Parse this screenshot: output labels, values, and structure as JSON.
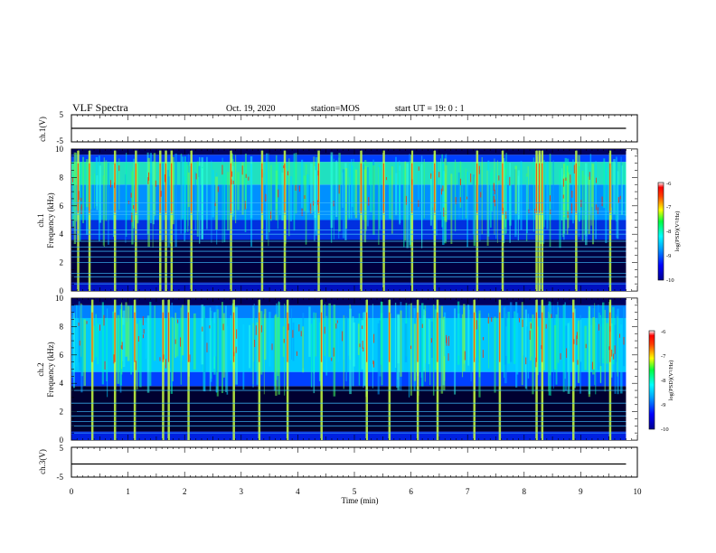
{
  "header": {
    "title": "VLF Spectra",
    "date": "Oct. 19, 2020",
    "station": "station=MOS",
    "start": "start  UT =   19: 0  : 1"
  },
  "chart_data": [
    {
      "type": "line",
      "ylabel": "ch.1(V)",
      "ylim": [
        -5,
        5
      ],
      "yticks": [
        {
          "v": 5,
          "label": "5"
        },
        {
          "v": -5,
          "label": "-5"
        }
      ],
      "series": [
        {
          "x": [
            0,
            9.8
          ],
          "values": [
            0,
            0
          ]
        }
      ]
    },
    {
      "type": "heatmap",
      "ylabel": "ch.1\nFrequency (kHz)",
      "ylim": [
        0,
        10
      ],
      "yticks": [
        "0",
        "2",
        "4",
        "6",
        "8",
        "10"
      ],
      "xlim": [
        0,
        10
      ],
      "data_end_min": 9.8,
      "colorbar": {
        "label": "log(PSD)(V²/Hz)",
        "ticks": [
          "-6",
          "-7",
          "-8",
          "-9",
          "-10"
        ],
        "range": [
          -10,
          -6
        ]
      },
      "lines_khz": [
        0.5,
        1.0,
        1.25,
        2.0,
        2.4,
        2.8,
        3.1,
        3.5,
        4.0,
        4.3,
        5.4,
        5.6,
        6.2
      ],
      "bursts_min": [
        0.1,
        0.3,
        0.75,
        1.12,
        1.55,
        1.65,
        1.75,
        2.1,
        2.8,
        3.35,
        3.75,
        4.35,
        5.1,
        5.5,
        6.0,
        6.4,
        7.15,
        7.6,
        8.2,
        8.25,
        8.3,
        8.9,
        9.5
      ]
    },
    {
      "type": "heatmap",
      "ylabel": "ch.2\nFrequency (kHz)",
      "ylim": [
        0,
        10
      ],
      "yticks": [
        "0",
        "2",
        "4",
        "6",
        "8",
        "10"
      ],
      "xlim": [
        0,
        10
      ],
      "data_end_min": 9.8,
      "colorbar": {
        "label": "log(PSD)(V²/Hz)",
        "ticks": [
          "-6",
          "-7",
          "-8",
          "-9",
          "-10"
        ],
        "range": [
          -10,
          -6
        ]
      },
      "lines_khz": [
        0.5,
        1.0,
        1.3,
        1.7,
        2.0,
        2.6,
        3.5
      ],
      "bursts_min": [
        0.35,
        0.75,
        1.1,
        1.6,
        1.7,
        2.05,
        2.85,
        3.3,
        3.8,
        4.4,
        5.2,
        5.6,
        6.1,
        6.45,
        7.1,
        7.55,
        8.2,
        8.3,
        8.85,
        9.5
      ]
    },
    {
      "type": "line",
      "ylabel": "ch.3(V)",
      "ylim": [
        -5,
        5
      ],
      "yticks": [
        {
          "v": 5,
          "label": "5"
        },
        {
          "v": -5,
          "label": "-5"
        }
      ],
      "series": [
        {
          "x": [
            0,
            9.8
          ],
          "values": [
            -0.6,
            -0.6
          ]
        }
      ]
    }
  ],
  "xaxis": {
    "label": "Time  (min)",
    "ticks": [
      "0",
      "1",
      "2",
      "3",
      "4",
      "5",
      "6",
      "7",
      "8",
      "9",
      "10"
    ]
  }
}
